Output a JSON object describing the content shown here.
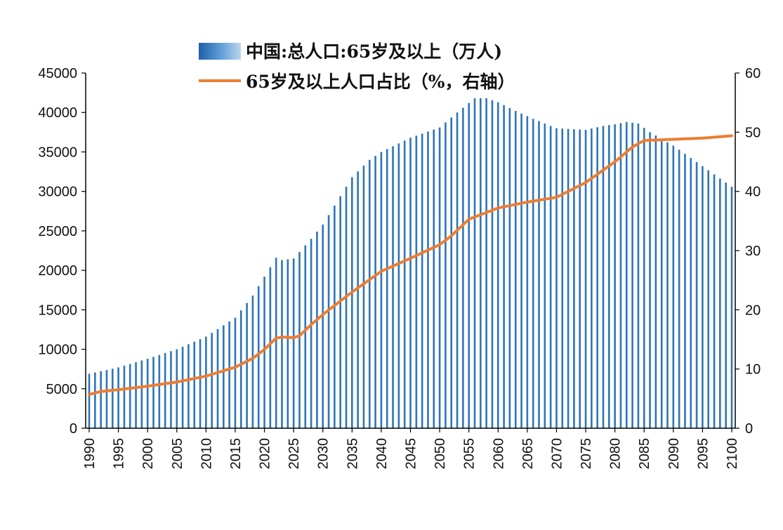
{
  "chart_data": {
    "type": "bar+line",
    "x_start": 1990,
    "x_end": 2100,
    "x_ticks": [
      1990,
      1995,
      2000,
      2005,
      2010,
      2015,
      2020,
      2025,
      2030,
      2035,
      2040,
      2045,
      2050,
      2055,
      2060,
      2065,
      2070,
      2075,
      2080,
      2085,
      2090,
      2095,
      2100
    ],
    "y_left": {
      "min": 0,
      "max": 45000,
      "ticks": [
        0,
        5000,
        10000,
        15000,
        20000,
        25000,
        30000,
        35000,
        40000,
        45000
      ]
    },
    "y_right": {
      "min": 0,
      "max": 60,
      "ticks": [
        0,
        10,
        20,
        30,
        40,
        50,
        60
      ]
    },
    "legend_position": "top-center",
    "grid": false,
    "series": [
      {
        "name": "中国:总人口:65岁及以上（万人)",
        "type": "bar",
        "axis": "left",
        "color": "#2e75b6",
        "keypoints": [
          [
            1990,
            6900
          ],
          [
            1995,
            7700
          ],
          [
            2000,
            8800
          ],
          [
            2005,
            10000
          ],
          [
            2010,
            11600
          ],
          [
            2015,
            14000
          ],
          [
            2018,
            16800
          ],
          [
            2020,
            19200
          ],
          [
            2022,
            21600
          ],
          [
            2023,
            21300
          ],
          [
            2025,
            21500
          ],
          [
            2028,
            24000
          ],
          [
            2030,
            25800
          ],
          [
            2035,
            31800
          ],
          [
            2038,
            34000
          ],
          [
            2040,
            35000
          ],
          [
            2045,
            36800
          ],
          [
            2050,
            38100
          ],
          [
            2053,
            40000
          ],
          [
            2056,
            41800
          ],
          [
            2058,
            41800
          ],
          [
            2060,
            41300
          ],
          [
            2063,
            40200
          ],
          [
            2066,
            39200
          ],
          [
            2070,
            38000
          ],
          [
            2075,
            37800
          ],
          [
            2078,
            38300
          ],
          [
            2080,
            38500
          ],
          [
            2082,
            38800
          ],
          [
            2084,
            38600
          ],
          [
            2086,
            37500
          ],
          [
            2090,
            35800
          ],
          [
            2095,
            33200
          ],
          [
            2100,
            30600
          ]
        ]
      },
      {
        "name": "65岁及以上人口占比（%，右轴）",
        "type": "line",
        "axis": "right",
        "color": "#ed7d31",
        "keypoints": [
          [
            1990,
            5.7
          ],
          [
            1992,
            6.2
          ],
          [
            1995,
            6.5
          ],
          [
            2000,
            7.1
          ],
          [
            2005,
            7.8
          ],
          [
            2010,
            8.8
          ],
          [
            2015,
            10.3
          ],
          [
            2018,
            11.8
          ],
          [
            2020,
            13.3
          ],
          [
            2022,
            15.2
          ],
          [
            2023,
            15.4
          ],
          [
            2025,
            15.3
          ],
          [
            2026,
            15.6
          ],
          [
            2028,
            17.5
          ],
          [
            2030,
            19.2
          ],
          [
            2035,
            23.0
          ],
          [
            2040,
            26.5
          ],
          [
            2045,
            28.7
          ],
          [
            2050,
            31.0
          ],
          [
            2052,
            32.5
          ],
          [
            2055,
            35.3
          ],
          [
            2060,
            37.2
          ],
          [
            2065,
            38.2
          ],
          [
            2070,
            39.0
          ],
          [
            2075,
            41.5
          ],
          [
            2080,
            45.0
          ],
          [
            2083,
            47.5
          ],
          [
            2085,
            48.6
          ],
          [
            2090,
            48.8
          ],
          [
            2095,
            49.0
          ],
          [
            2100,
            49.4
          ]
        ]
      }
    ]
  }
}
